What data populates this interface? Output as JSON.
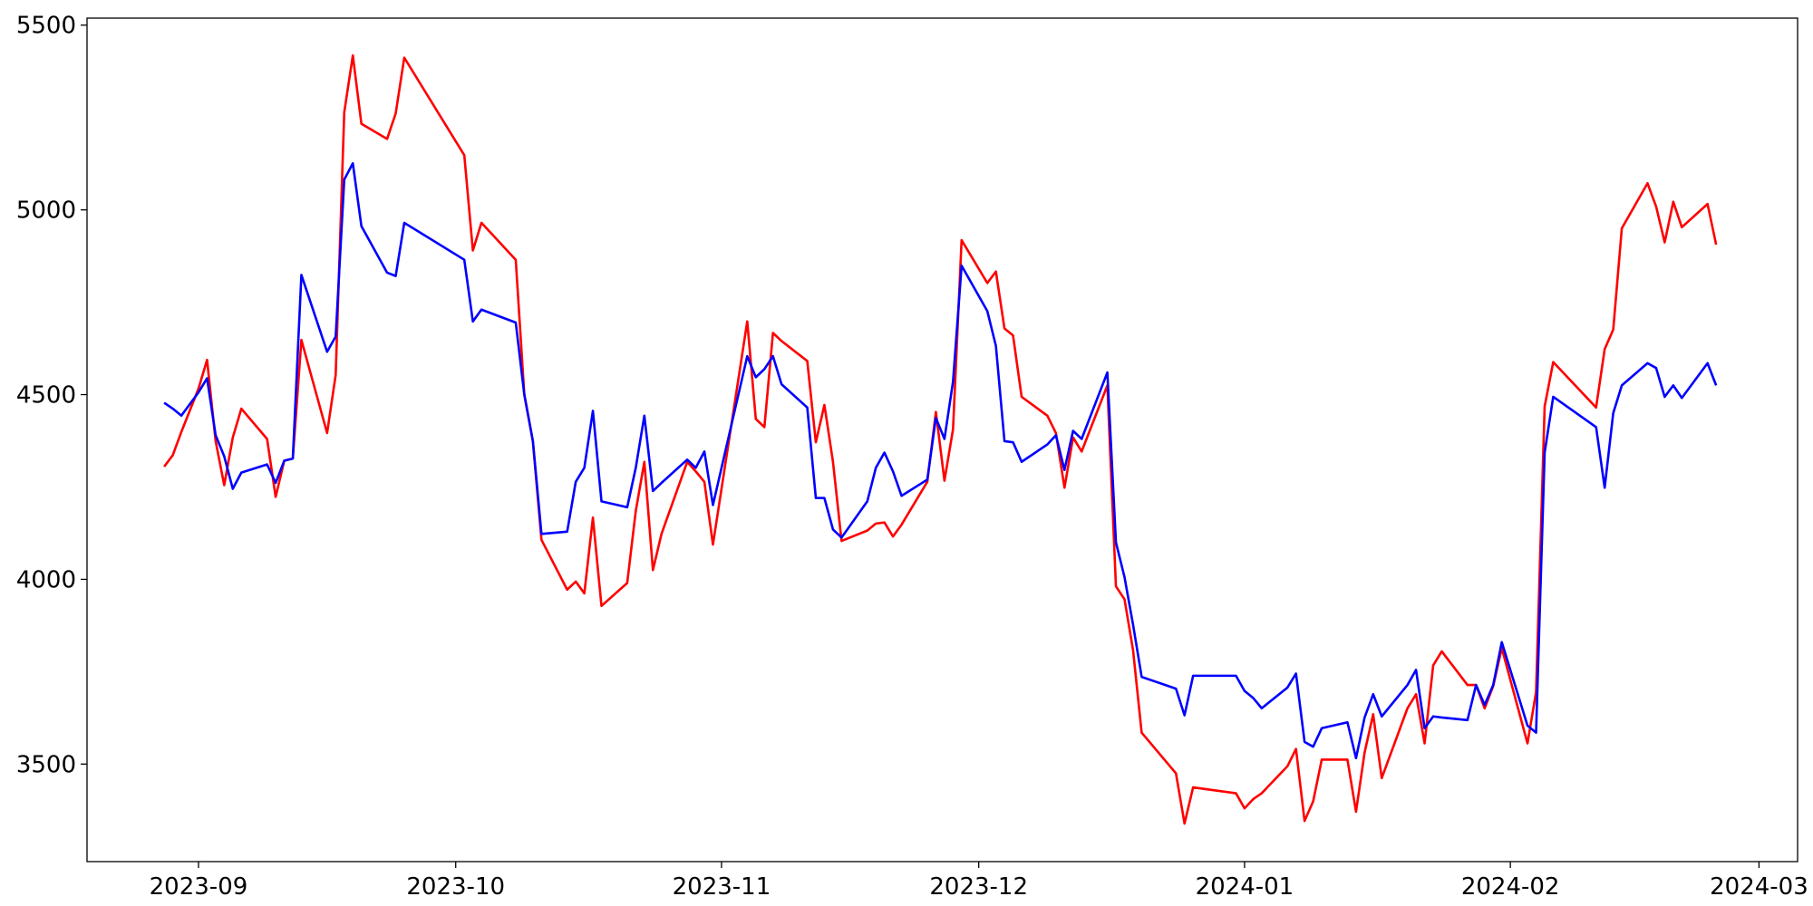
{
  "chart_data": {
    "type": "line",
    "x": [
      19597,
      19598,
      19599,
      19601,
      19602,
      19603,
      19604,
      19605,
      19606,
      19609,
      19610,
      19611,
      19612,
      19613,
      19616,
      19617,
      19618,
      19619,
      19620,
      19623,
      19624,
      19625,
      19632,
      19633,
      19634,
      19638,
      19639,
      19640,
      19641,
      19644,
      19645,
      19646,
      19647,
      19648,
      19651,
      19652,
      19653,
      19654,
      19655,
      19658,
      19659,
      19660,
      19661,
      19665,
      19666,
      19667,
      19668,
      19669,
      19672,
      19673,
      19674,
      19675,
      19676,
      19679,
      19680,
      19681,
      19682,
      19683,
      19686,
      19687,
      19688,
      19689,
      19690,
      19693,
      19694,
      19695,
      19696,
      19697,
      19700,
      19701,
      19702,
      19703,
      19704,
      19707,
      19708,
      19709,
      19710,
      19711,
      19715,
      19716,
      19717,
      19722,
      19723,
      19724,
      19725,
      19728,
      19729,
      19730,
      19731,
      19732,
      19735,
      19736,
      19737,
      19738,
      19739,
      19742,
      19743,
      19744,
      19745,
      19746,
      19749,
      19750,
      19751,
      19752,
      19753,
      19756,
      19757,
      19758,
      19759,
      19764,
      19765,
      19766,
      19767,
      19770,
      19771,
      19772,
      19773,
      19774,
      19777,
      19778
    ],
    "series": [
      {
        "color": "#ff0000",
        "values": [
          4305,
          4336,
          4399,
          4516,
          4594,
          4374,
          4255,
          4384,
          4462,
          4380,
          4223,
          4321,
          4327,
          4648,
          4396,
          4553,
          5264,
          5418,
          5233,
          5192,
          5261,
          5412,
          5148,
          4890,
          4965,
          4865,
          4500,
          4374,
          4107,
          3972,
          3994,
          3962,
          4167,
          3928,
          3990,
          4185,
          4318,
          4025,
          4123,
          4318,
          4292,
          4264,
          4094,
          4698,
          4434,
          4412,
          4667,
          4645,
          4591,
          4371,
          4472,
          4318,
          4104,
          4132,
          4151,
          4154,
          4116,
          4148,
          4264,
          4453,
          4267,
          4406,
          4918,
          4802,
          4833,
          4679,
          4660,
          4494,
          4443,
          4396,
          4248,
          4384,
          4346,
          4525,
          3981,
          3946,
          3808,
          3585,
          3475,
          3339,
          3437,
          3421,
          3380,
          3405,
          3421,
          3494,
          3541,
          3346,
          3399,
          3512,
          3512,
          3371,
          3531,
          3635,
          3462,
          3651,
          3689,
          3556,
          3767,
          3805,
          3714,
          3714,
          3651,
          3711,
          3814,
          3556,
          3695,
          4468,
          4588,
          4465,
          4623,
          4676,
          4950,
          5072,
          5009,
          4912,
          5022,
          4953,
          5016,
          4906
        ]
      },
      {
        "color": "#0000ff",
        "values": [
          4478,
          4462,
          4443,
          4506,
          4544,
          4390,
          4333,
          4245,
          4289,
          4311,
          4261,
          4321,
          4327,
          4824,
          4616,
          4657,
          5082,
          5126,
          4956,
          4830,
          4821,
          4965,
          4865,
          4698,
          4730,
          4695,
          4500,
          4374,
          4123,
          4129,
          4264,
          4302,
          4456,
          4211,
          4195,
          4302,
          4443,
          4239,
          4261,
          4324,
          4302,
          4346,
          4201,
          4604,
          4547,
          4569,
          4604,
          4528,
          4465,
          4220,
          4220,
          4135,
          4113,
          4211,
          4302,
          4343,
          4292,
          4226,
          4270,
          4437,
          4380,
          4535,
          4849,
          4726,
          4632,
          4374,
          4371,
          4318,
          4365,
          4390,
          4296,
          4402,
          4380,
          4560,
          4100,
          4006,
          3877,
          3736,
          3704,
          3632,
          3739,
          3739,
          3698,
          3679,
          3651,
          3707,
          3745,
          3560,
          3547,
          3597,
          3613,
          3516,
          3626,
          3689,
          3629,
          3714,
          3755,
          3597,
          3629,
          3626,
          3619,
          3714,
          3660,
          3714,
          3830,
          3604,
          3585,
          4343,
          4494,
          4412,
          4248,
          4450,
          4525,
          4585,
          4572,
          4494,
          4525,
          4491,
          4585,
          4525
        ]
      }
    ],
    "xlim": [
      19588,
      19787.5
    ],
    "xticks": [
      {
        "value": 19601,
        "label": "2023-09"
      },
      {
        "value": 19631,
        "label": "2023-10"
      },
      {
        "value": 19662,
        "label": "2023-11"
      },
      {
        "value": 19692,
        "label": "2023-12"
      },
      {
        "value": 19723,
        "label": "2024-01"
      },
      {
        "value": 19754,
        "label": "2024-02"
      },
      {
        "value": 19783,
        "label": "2024-03"
      }
    ],
    "ylim": [
      3236,
      5519
    ],
    "yticks": [
      3500,
      4000,
      4500,
      5000,
      5500
    ]
  }
}
